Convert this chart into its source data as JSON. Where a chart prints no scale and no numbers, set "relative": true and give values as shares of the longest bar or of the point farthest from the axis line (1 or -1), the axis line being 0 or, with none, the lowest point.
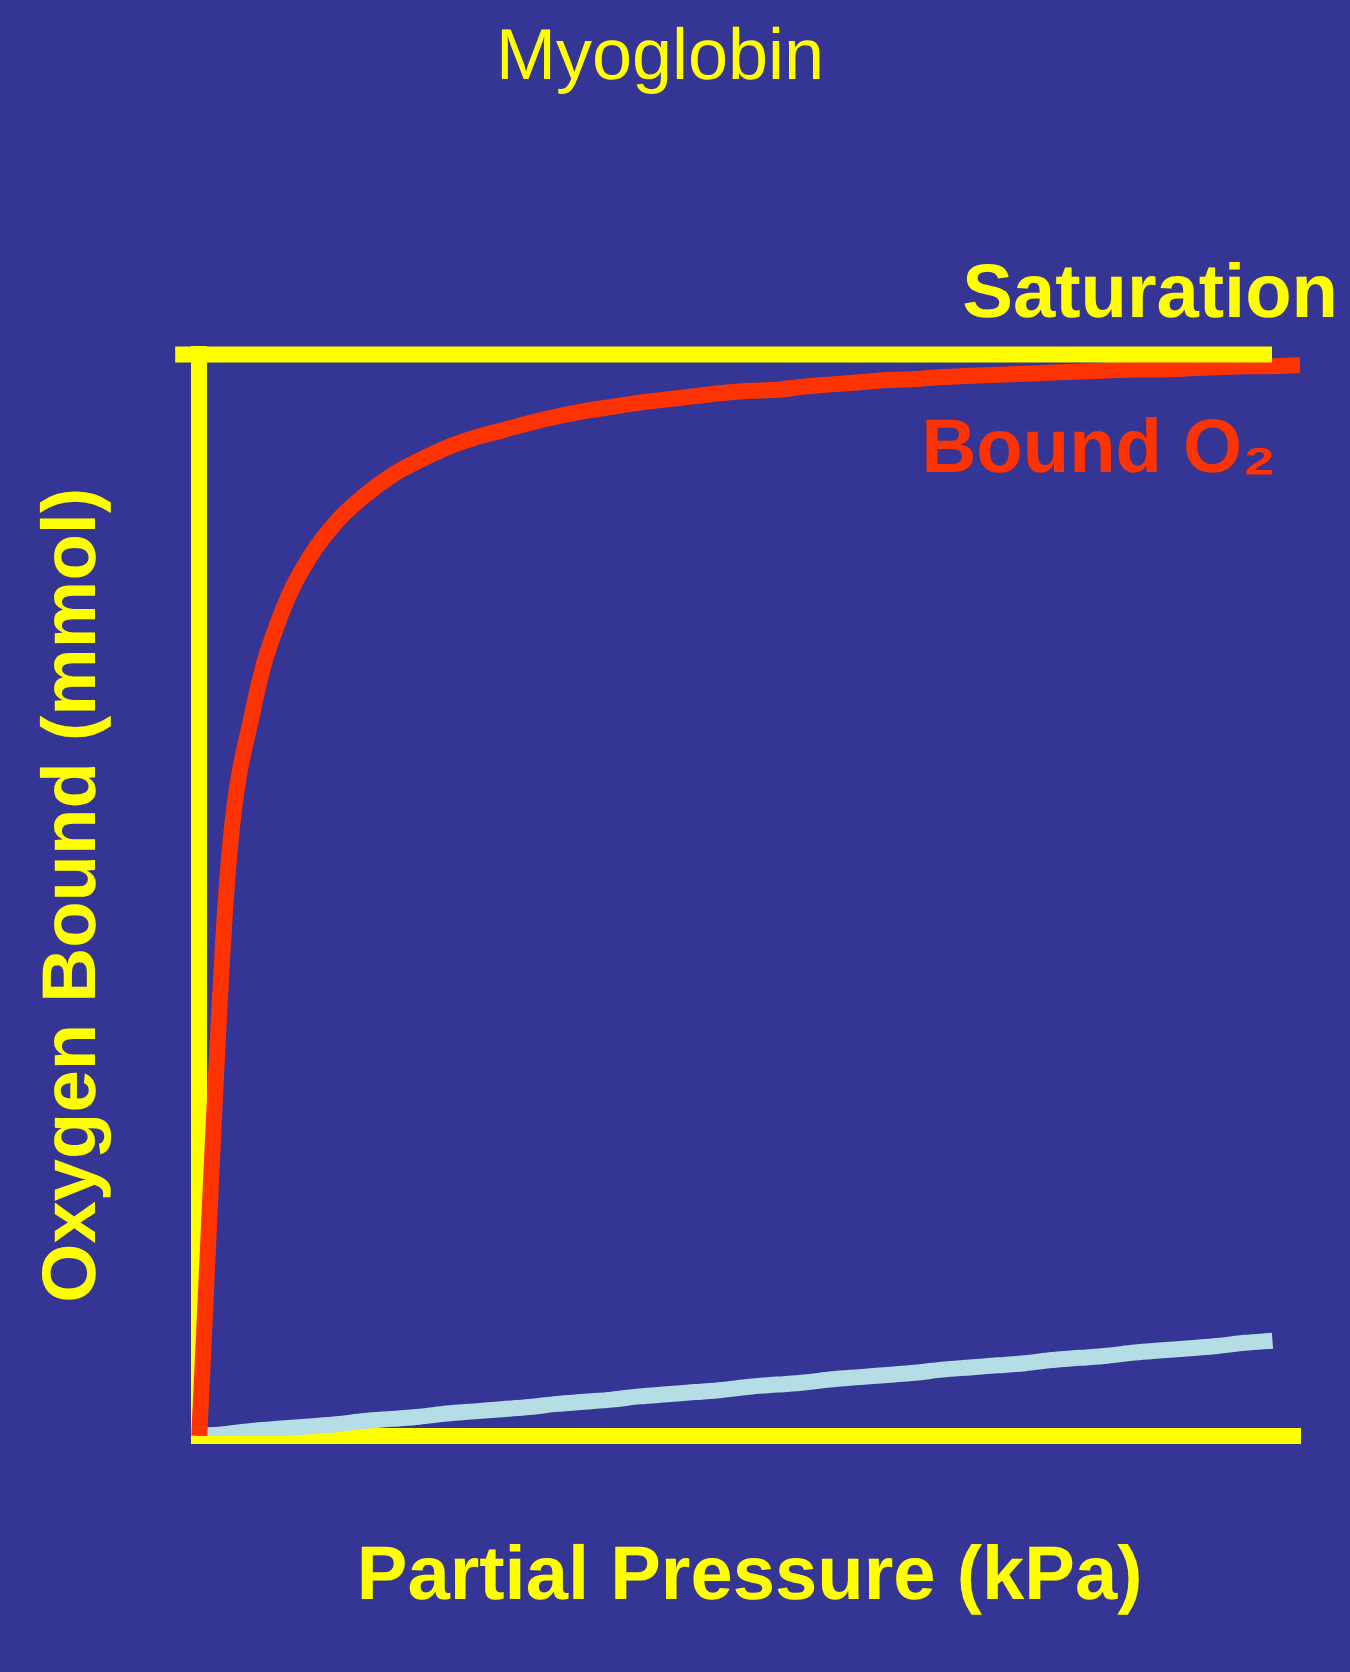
{
  "chart_data": {
    "type": "line",
    "title": "Myoglobin",
    "xlabel": "Partial Pressure (kPa)",
    "ylabel": "Oxygen Bound (mmol)",
    "relative": true,
    "grid": false,
    "legend": false,
    "marker": "none",
    "line_style": "solid",
    "categories": [
      null,
      null,
      null,
      null,
      null,
      null,
      null,
      null,
      null,
      null,
      null,
      null,
      null,
      null,
      null,
      null,
      null,
      null,
      null,
      null,
      null,
      null,
      null,
      null,
      null,
      null,
      null,
      null,
      null,
      null,
      null,
      null,
      null,
      null,
      null,
      null,
      null,
      null,
      null,
      null,
      null
    ],
    "series": [
      {
        "name": "Bound O₂",
        "color": "#ff3300",
        "values": [
          0,
          0.513,
          0.683,
          0.769,
          0.82,
          0.854,
          0.878,
          0.897,
          0.911,
          0.923,
          0.932,
          0.939,
          0.946,
          0.952,
          0.957,
          0.961,
          0.965,
          0.968,
          0.971,
          0.974,
          0.976,
          0.977,
          0.98,
          0.982,
          0.984,
          0.986,
          0.987,
          0.989,
          0.99,
          0.991,
          0.992,
          0.993,
          0.994,
          0.995,
          0.996,
          0.996,
          0.997,
          0.998,
          0.999,
          0.999,
          1
        ]
      },
      {
        "color": "#b5dde6",
        "values": [
          0,
          0.002,
          0.005,
          0.007,
          0.009,
          0.011,
          0.014,
          0.016,
          0.018,
          0.021,
          0.023,
          0.025,
          0.027,
          0.03,
          0.032,
          0.034,
          0.037,
          0.039,
          0.041,
          0.043,
          0.046,
          0.048,
          0.05,
          0.053,
          0.055,
          0.057,
          0.059,
          0.062,
          0.064,
          0.066,
          0.068,
          0.071,
          0.073,
          0.075,
          0.078,
          0.08,
          0.082,
          0.084,
          0.087,
          0.089,
          null
        ]
      }
    ],
    "ref_lines": [
      {
        "axis": "y",
        "value": 1.01,
        "label": "Saturation",
        "color": "#ffff00"
      }
    ]
  }
}
